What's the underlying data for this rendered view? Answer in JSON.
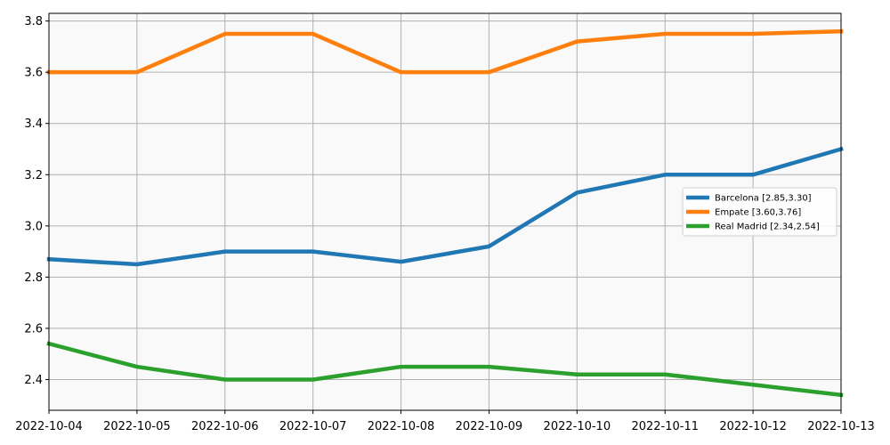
{
  "chart_data": {
    "type": "line",
    "title": "",
    "xlabel": "",
    "ylabel": "",
    "x": [
      "2022-10-04",
      "2022-10-05",
      "2022-10-06",
      "2022-10-07",
      "2022-10-08",
      "2022-10-09",
      "2022-10-10",
      "2022-10-11",
      "2022-10-12",
      "2022-10-13"
    ],
    "ylim": [
      2.28,
      3.83
    ],
    "yticks": [
      "2.4",
      "2.6",
      "2.8",
      "3.0",
      "3.2",
      "3.4",
      "3.6",
      "3.8"
    ],
    "grid": true,
    "legend_position": "center-right",
    "plot_background": "#f9f9f9",
    "series": [
      {
        "name": "Barcelona [2.85,3.30]",
        "color": "#1f77b4",
        "values": [
          2.87,
          2.85,
          2.9,
          2.9,
          2.86,
          2.92,
          3.13,
          3.2,
          3.2,
          3.3
        ]
      },
      {
        "name": "Empate [3.60,3.76]",
        "color": "#ff7f0e",
        "values": [
          3.6,
          3.6,
          3.75,
          3.75,
          3.6,
          3.6,
          3.72,
          3.75,
          3.75,
          3.76
        ]
      },
      {
        "name": "Real Madrid [2.34,2.54]",
        "color": "#2ca02c",
        "values": [
          2.54,
          2.45,
          2.4,
          2.4,
          2.45,
          2.45,
          2.42,
          2.42,
          2.38,
          2.34
        ]
      }
    ]
  }
}
